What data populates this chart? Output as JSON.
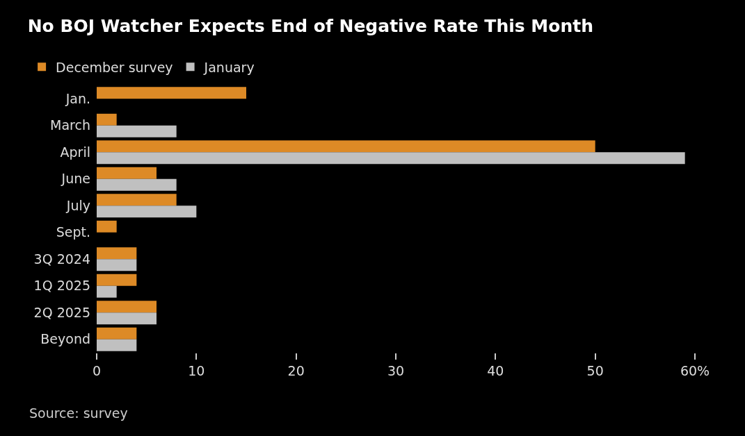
{
  "chart_data": {
    "type": "bar",
    "orientation": "horizontal",
    "title": "No BOJ Watcher Expects End of Negative Rate This Month",
    "categories": [
      "Jan.",
      "March",
      "April",
      "June",
      "July",
      "Sept.",
      "3Q 2024",
      "1Q 2025",
      "2Q 2025",
      "Beyond"
    ],
    "series": [
      {
        "name": "December survey",
        "color": "#dd8a26",
        "values": [
          15,
          2,
          50,
          6,
          8,
          2,
          4,
          4,
          6,
          4
        ]
      },
      {
        "name": "January",
        "color": "#c0c0c0",
        "values": [
          0,
          8,
          59,
          8,
          10,
          0,
          4,
          2,
          6,
          4
        ]
      }
    ],
    "xlim": [
      0,
      60
    ],
    "xticks": [
      0,
      10,
      20,
      30,
      40,
      50,
      {
        "value": 60,
        "label": "60%"
      }
    ],
    "grid": false,
    "legend": "top left",
    "annotations": [
      "Source: survey"
    ]
  }
}
